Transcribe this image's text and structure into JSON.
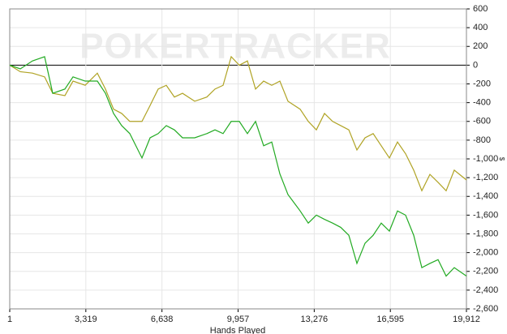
{
  "chart_data": {
    "type": "line",
    "watermark": "POKERTRACKER",
    "x_label": "Hands Played",
    "y_label": "$",
    "x": [
      1,
      461,
      991,
      1521,
      1875,
      2406,
      2760,
      3290,
      3820,
      4174,
      4528,
      4882,
      5235,
      5766,
      6120,
      6473,
      6827,
      7180,
      7534,
      8065,
      8595,
      8949,
      9302,
      9656,
      10010,
      10363,
      10717,
      11071,
      11424,
      11778,
      12131,
      12662,
      13016,
      13369,
      13723,
      14077,
      14430,
      14784,
      15137,
      15491,
      15845,
      16198,
      16552,
      16906,
      17259,
      17613,
      17967,
      18320,
      18674,
      19027,
      19381,
      19912
    ],
    "series": [
      {
        "color": "#b0a324",
        "values": [
          0,
          -70,
          -85,
          -125,
          -300,
          -325,
          -170,
          -215,
          -85,
          -255,
          -470,
          -515,
          -600,
          -600,
          -430,
          -255,
          -215,
          -340,
          -300,
          -385,
          -340,
          -255,
          -215,
          90,
          0,
          45,
          -255,
          -170,
          -215,
          -170,
          -385,
          -470,
          -600,
          -690,
          -515,
          -600,
          -645,
          -690,
          -905,
          -775,
          -730,
          -860,
          -990,
          -820,
          -945,
          -1120,
          -1340,
          -1165,
          -1250,
          -1340,
          -1120,
          -1225
        ]
      },
      {
        "color": "#22aa22",
        "values": [
          0,
          -40,
          45,
          90,
          -300,
          -255,
          -125,
          -170,
          -170,
          -300,
          -515,
          -645,
          -730,
          -990,
          -775,
          -730,
          -645,
          -690,
          -775,
          -775,
          -730,
          -690,
          -730,
          -600,
          -600,
          -730,
          -600,
          -860,
          -820,
          -1160,
          -1380,
          -1555,
          -1685,
          -1600,
          -1645,
          -1685,
          -1730,
          -1815,
          -2115,
          -1900,
          -1815,
          -1685,
          -1770,
          -1555,
          -1600,
          -1815,
          -2160,
          -2115,
          -2075,
          -2250,
          -2160,
          -2250
        ]
      }
    ],
    "xlim": [
      1,
      19912
    ],
    "xticks": [
      1,
      {
        "value": 3319,
        "label": "3,319"
      },
      {
        "value": 6638,
        "label": "6,638"
      },
      {
        "value": 9957,
        "label": "9,957"
      },
      {
        "value": 13276,
        "label": "13,276"
      },
      {
        "value": 16595,
        "label": "16,595"
      },
      {
        "value": 19912,
        "label": "19,912"
      }
    ],
    "ylim": [
      -2600,
      600
    ],
    "yticks": [
      600,
      400,
      200,
      0,
      -200,
      -400,
      -600,
      -800,
      {
        "value": -1000,
        "label": "-1,000"
      },
      {
        "value": -1200,
        "label": "-1,200"
      },
      {
        "value": -1400,
        "label": "-1,400"
      },
      {
        "value": -1600,
        "label": "-1,600"
      },
      {
        "value": -1800,
        "label": "-1,800"
      },
      {
        "value": -2000,
        "label": "-2,000"
      },
      {
        "value": -2200,
        "label": "-2,200"
      },
      {
        "value": -2400,
        "label": "-2,400"
      },
      {
        "value": -2600,
        "label": "-2,600"
      }
    ],
    "grid": true
  }
}
